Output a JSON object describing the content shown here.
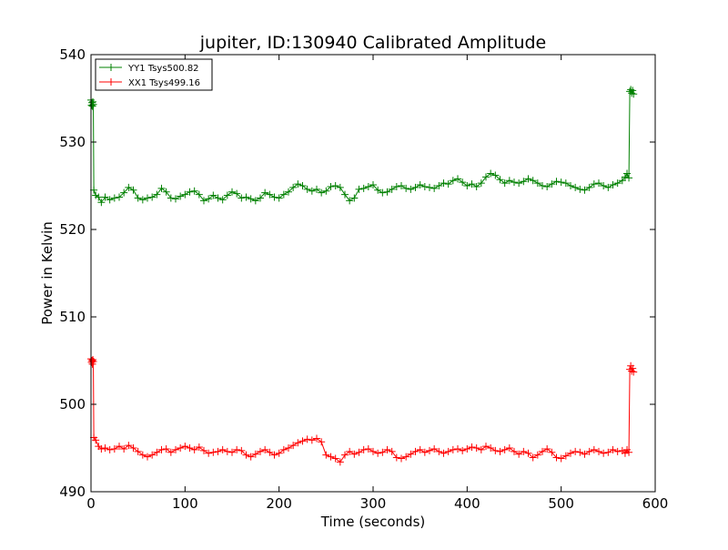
{
  "chart_data": {
    "type": "line",
    "title": "jupiter, ID:130940 Calibrated Amplitude",
    "xlabel": "Time (seconds)",
    "ylabel": "Power in Kelvin",
    "xlim": [
      0,
      600
    ],
    "ylim": [
      490,
      540
    ],
    "xticks": [
      0,
      100,
      200,
      300,
      400,
      500,
      600
    ],
    "yticks": [
      490,
      500,
      510,
      520,
      530,
      540
    ],
    "grid": false,
    "legend_position": "top-left",
    "marker": "+",
    "series": [
      {
        "name": "YY1 Tsys500.82",
        "color": "#008000",
        "points": [
          [
            0,
            534.8
          ],
          [
            0.5,
            534.2
          ],
          [
            1,
            534.5
          ],
          [
            1.5,
            534.1
          ],
          [
            2,
            534.6
          ],
          [
            2.5,
            534.3
          ],
          [
            3,
            524.5
          ],
          [
            5,
            523.9
          ],
          [
            8,
            523.7
          ],
          [
            11,
            523.1
          ],
          [
            15,
            523.7
          ],
          [
            20,
            523.4
          ],
          [
            25,
            523.6
          ],
          [
            30,
            523.7
          ],
          [
            35,
            524.2
          ],
          [
            40,
            524.8
          ],
          [
            45,
            524.5
          ],
          [
            50,
            523.6
          ],
          [
            55,
            523.4
          ],
          [
            60,
            523.6
          ],
          [
            65,
            523.7
          ],
          [
            70,
            524.0
          ],
          [
            75,
            524.7
          ],
          [
            80,
            524.3
          ],
          [
            85,
            523.6
          ],
          [
            90,
            523.5
          ],
          [
            95,
            523.8
          ],
          [
            100,
            524.0
          ],
          [
            105,
            524.3
          ],
          [
            110,
            524.4
          ],
          [
            115,
            524.0
          ],
          [
            120,
            523.3
          ],
          [
            125,
            523.5
          ],
          [
            130,
            523.9
          ],
          [
            135,
            523.6
          ],
          [
            140,
            523.4
          ],
          [
            145,
            523.9
          ],
          [
            150,
            524.3
          ],
          [
            155,
            524.1
          ],
          [
            160,
            523.6
          ],
          [
            165,
            523.7
          ],
          [
            170,
            523.5
          ],
          [
            175,
            523.3
          ],
          [
            180,
            523.6
          ],
          [
            185,
            524.2
          ],
          [
            190,
            524.0
          ],
          [
            195,
            523.7
          ],
          [
            200,
            523.6
          ],
          [
            205,
            524.0
          ],
          [
            210,
            524.3
          ],
          [
            215,
            524.8
          ],
          [
            220,
            525.2
          ],
          [
            225,
            525.0
          ],
          [
            230,
            524.6
          ],
          [
            235,
            524.4
          ],
          [
            240,
            524.6
          ],
          [
            245,
            524.2
          ],
          [
            250,
            524.4
          ],
          [
            255,
            524.9
          ],
          [
            260,
            525.0
          ],
          [
            265,
            524.8
          ],
          [
            270,
            524.0
          ],
          [
            275,
            523.3
          ],
          [
            280,
            523.6
          ],
          [
            285,
            524.6
          ],
          [
            290,
            524.7
          ],
          [
            295,
            524.9
          ],
          [
            300,
            525.1
          ],
          [
            305,
            524.5
          ],
          [
            310,
            524.2
          ],
          [
            315,
            524.3
          ],
          [
            320,
            524.6
          ],
          [
            325,
            524.9
          ],
          [
            330,
            525.0
          ],
          [
            335,
            524.7
          ],
          [
            340,
            524.6
          ],
          [
            345,
            524.8
          ],
          [
            350,
            525.1
          ],
          [
            355,
            524.9
          ],
          [
            360,
            524.8
          ],
          [
            365,
            524.7
          ],
          [
            370,
            525.0
          ],
          [
            375,
            525.3
          ],
          [
            380,
            525.2
          ],
          [
            385,
            525.6
          ],
          [
            390,
            525.8
          ],
          [
            395,
            525.4
          ],
          [
            400,
            525.0
          ],
          [
            405,
            525.2
          ],
          [
            410,
            524.9
          ],
          [
            415,
            525.3
          ],
          [
            420,
            526.0
          ],
          [
            425,
            526.4
          ],
          [
            430,
            526.2
          ],
          [
            435,
            525.7
          ],
          [
            440,
            525.3
          ],
          [
            445,
            525.6
          ],
          [
            450,
            525.4
          ],
          [
            455,
            525.3
          ],
          [
            460,
            525.5
          ],
          [
            465,
            525.8
          ],
          [
            470,
            525.6
          ],
          [
            475,
            525.3
          ],
          [
            480,
            525.0
          ],
          [
            485,
            524.9
          ],
          [
            490,
            525.2
          ],
          [
            495,
            525.5
          ],
          [
            500,
            525.4
          ],
          [
            505,
            525.3
          ],
          [
            510,
            525.0
          ],
          [
            515,
            524.8
          ],
          [
            520,
            524.6
          ],
          [
            525,
            524.5
          ],
          [
            530,
            524.8
          ],
          [
            535,
            525.2
          ],
          [
            540,
            525.3
          ],
          [
            545,
            525.0
          ],
          [
            550,
            524.8
          ],
          [
            555,
            525.1
          ],
          [
            560,
            525.3
          ],
          [
            565,
            525.6
          ],
          [
            568,
            526.0
          ],
          [
            570,
            526.4
          ],
          [
            572,
            525.9
          ],
          [
            573,
            535.8
          ],
          [
            574,
            536.0
          ],
          [
            575,
            535.6
          ],
          [
            576,
            535.9
          ],
          [
            577,
            535.5
          ]
        ]
      },
      {
        "name": "XX1 Tsys499.16",
        "color": "#ff0000",
        "points": [
          [
            0,
            505.2
          ],
          [
            0.5,
            504.8
          ],
          [
            1,
            505.0
          ],
          [
            1.5,
            504.6
          ],
          [
            2,
            505.1
          ],
          [
            2.5,
            504.9
          ],
          [
            3,
            496.2
          ],
          [
            5,
            495.9
          ],
          [
            8,
            495.2
          ],
          [
            11,
            494.9
          ],
          [
            15,
            495.0
          ],
          [
            20,
            494.8
          ],
          [
            25,
            494.9
          ],
          [
            30,
            495.2
          ],
          [
            35,
            494.9
          ],
          [
            40,
            495.3
          ],
          [
            45,
            495.0
          ],
          [
            50,
            494.6
          ],
          [
            55,
            494.2
          ],
          [
            60,
            494.0
          ],
          [
            65,
            494.2
          ],
          [
            70,
            494.5
          ],
          [
            75,
            494.8
          ],
          [
            80,
            494.9
          ],
          [
            85,
            494.5
          ],
          [
            90,
            494.8
          ],
          [
            95,
            495.0
          ],
          [
            100,
            495.2
          ],
          [
            105,
            495.0
          ],
          [
            110,
            494.8
          ],
          [
            115,
            495.1
          ],
          [
            120,
            494.7
          ],
          [
            125,
            494.4
          ],
          [
            130,
            494.5
          ],
          [
            135,
            494.6
          ],
          [
            140,
            494.8
          ],
          [
            145,
            494.6
          ],
          [
            150,
            494.5
          ],
          [
            155,
            494.8
          ],
          [
            160,
            494.7
          ],
          [
            165,
            494.2
          ],
          [
            170,
            494.0
          ],
          [
            175,
            494.3
          ],
          [
            180,
            494.6
          ],
          [
            185,
            494.8
          ],
          [
            190,
            494.5
          ],
          [
            195,
            494.2
          ],
          [
            200,
            494.4
          ],
          [
            205,
            494.8
          ],
          [
            210,
            495.0
          ],
          [
            215,
            495.3
          ],
          [
            220,
            495.6
          ],
          [
            225,
            495.8
          ],
          [
            230,
            496.0
          ],
          [
            235,
            495.9
          ],
          [
            240,
            496.1
          ],
          [
            245,
            495.7
          ],
          [
            250,
            494.2
          ],
          [
            255,
            494.0
          ],
          [
            260,
            493.8
          ],
          [
            265,
            493.4
          ],
          [
            270,
            494.2
          ],
          [
            275,
            494.6
          ],
          [
            280,
            494.3
          ],
          [
            285,
            494.5
          ],
          [
            290,
            494.8
          ],
          [
            295,
            494.9
          ],
          [
            300,
            494.6
          ],
          [
            305,
            494.4
          ],
          [
            310,
            494.5
          ],
          [
            315,
            494.8
          ],
          [
            320,
            494.6
          ],
          [
            325,
            493.9
          ],
          [
            330,
            493.8
          ],
          [
            335,
            494.0
          ],
          [
            340,
            494.3
          ],
          [
            345,
            494.6
          ],
          [
            350,
            494.8
          ],
          [
            355,
            494.5
          ],
          [
            360,
            494.7
          ],
          [
            365,
            494.9
          ],
          [
            370,
            494.6
          ],
          [
            375,
            494.4
          ],
          [
            380,
            494.6
          ],
          [
            385,
            494.8
          ],
          [
            390,
            494.9
          ],
          [
            395,
            494.7
          ],
          [
            400,
            494.9
          ],
          [
            405,
            495.1
          ],
          [
            410,
            495.0
          ],
          [
            415,
            494.8
          ],
          [
            420,
            495.2
          ],
          [
            425,
            495.0
          ],
          [
            430,
            494.7
          ],
          [
            435,
            494.6
          ],
          [
            440,
            494.8
          ],
          [
            445,
            495.0
          ],
          [
            450,
            494.6
          ],
          [
            455,
            494.3
          ],
          [
            460,
            494.6
          ],
          [
            465,
            494.4
          ],
          [
            470,
            493.9
          ],
          [
            475,
            494.2
          ],
          [
            480,
            494.6
          ],
          [
            485,
            494.9
          ],
          [
            490,
            494.5
          ],
          [
            495,
            493.9
          ],
          [
            500,
            493.8
          ],
          [
            505,
            494.1
          ],
          [
            510,
            494.4
          ],
          [
            515,
            494.6
          ],
          [
            520,
            494.5
          ],
          [
            525,
            494.3
          ],
          [
            530,
            494.6
          ],
          [
            535,
            494.8
          ],
          [
            540,
            494.6
          ],
          [
            545,
            494.4
          ],
          [
            550,
            494.5
          ],
          [
            555,
            494.8
          ],
          [
            560,
            494.6
          ],
          [
            565,
            494.7
          ],
          [
            568,
            494.4
          ],
          [
            570,
            494.8
          ],
          [
            572,
            494.5
          ],
          [
            573,
            504.0
          ],
          [
            574,
            504.4
          ],
          [
            575,
            503.8
          ],
          [
            576,
            504.1
          ],
          [
            577,
            503.7
          ]
        ]
      }
    ]
  }
}
